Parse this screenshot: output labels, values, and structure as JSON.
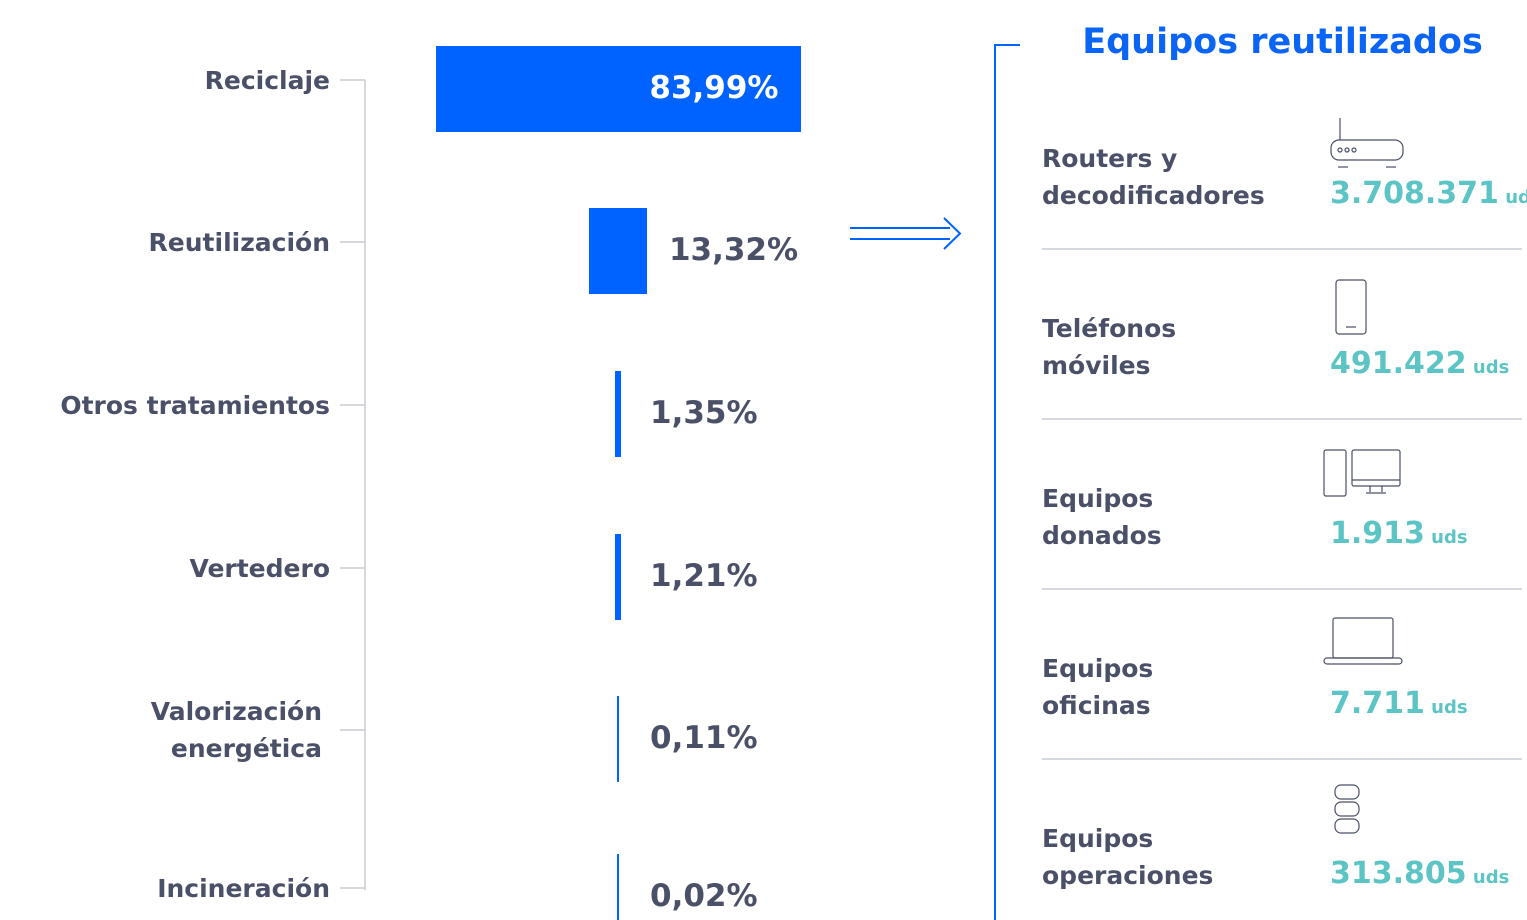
{
  "chart_data": {
    "type": "bar",
    "categories": [
      "Reciclaje",
      "Reutilización",
      "Otros tratamientos",
      "Vertedero",
      "Valorización\nenergética",
      "Incineración"
    ],
    "values": [
      83.99,
      13.32,
      1.35,
      1.21,
      0.11,
      0.02
    ],
    "value_labels": [
      "83,99%",
      "13,32%",
      "1,35%",
      "1,21%",
      "0,11%",
      "0,02%"
    ],
    "color": "#0062ff"
  },
  "panel": {
    "title": "Equipos reutilizados",
    "items": [
      {
        "name": "Routers y\ndecodificadores",
        "value": "3.708.371",
        "unit": "uds"
      },
      {
        "name": "Teléfonos\nmóviles",
        "value": "491.422",
        "unit": "uds"
      },
      {
        "name": "Equipos\ndonados",
        "value": "1.913",
        "unit": "uds"
      },
      {
        "name": "Equipos\noficinas",
        "value": "7.711",
        "unit": "uds"
      },
      {
        "name": "Equipos\noperaciones",
        "value": "313.805",
        "unit": "uds"
      }
    ]
  }
}
